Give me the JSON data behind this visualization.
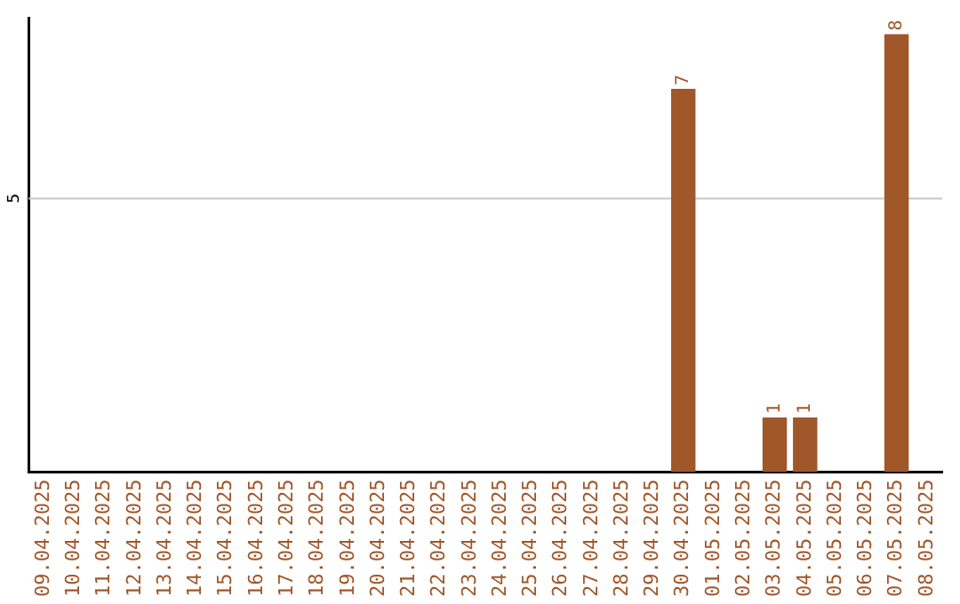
{
  "chart_data": {
    "type": "bar",
    "categories": [
      "09.04.2025",
      "10.04.2025",
      "11.04.2025",
      "12.04.2025",
      "13.04.2025",
      "14.04.2025",
      "15.04.2025",
      "16.04.2025",
      "17.04.2025",
      "18.04.2025",
      "19.04.2025",
      "20.04.2025",
      "21.04.2025",
      "22.04.2025",
      "23.04.2025",
      "24.04.2025",
      "25.04.2025",
      "26.04.2025",
      "27.04.2025",
      "28.04.2025",
      "29.04.2025",
      "30.04.2025",
      "01.05.2025",
      "02.05.2025",
      "03.05.2025",
      "04.05.2025",
      "05.05.2025",
      "06.05.2025",
      "07.05.2025",
      "08.05.2025"
    ],
    "values": [
      null,
      null,
      null,
      null,
      null,
      null,
      null,
      null,
      null,
      null,
      null,
      null,
      null,
      null,
      null,
      null,
      null,
      null,
      null,
      null,
      null,
      7,
      null,
      null,
      1,
      1,
      null,
      null,
      8,
      null
    ],
    "data_labels": true,
    "color": "#a0572a",
    "ylim": [
      0,
      8.3
    ],
    "ref_lines": [
      {
        "axis": "y",
        "value": 5,
        "label": "5",
        "color": "#c8c8c8"
      }
    ],
    "legend": false
  }
}
